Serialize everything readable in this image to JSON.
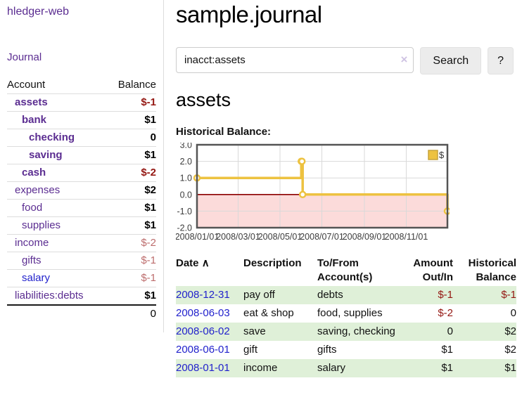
{
  "sidebar": {
    "app_title": "hledger-web",
    "journal_link": "Journal",
    "accounts_table": {
      "headers": {
        "account": "Account",
        "balance": "Balance"
      },
      "rows": [
        {
          "name": "assets",
          "balance": "$-1"
        },
        {
          "name": "bank",
          "balance": "$1"
        },
        {
          "name": "checking",
          "balance": "0"
        },
        {
          "name": "saving",
          "balance": "$1"
        },
        {
          "name": "cash",
          "balance": "$-2"
        },
        {
          "name": "expenses",
          "balance": "$2"
        },
        {
          "name": "food",
          "balance": "$1"
        },
        {
          "name": "supplies",
          "balance": "$1"
        },
        {
          "name": "income",
          "balance": "$-2"
        },
        {
          "name": "gifts",
          "balance": "$-1"
        },
        {
          "name": "salary",
          "balance": "$-1"
        },
        {
          "name": "liabilities:debts",
          "balance": "$1"
        }
      ],
      "total": "0"
    }
  },
  "main": {
    "title": "sample.journal",
    "search": {
      "query": "inacct:assets",
      "clear_icon": "×",
      "search_label": "Search",
      "help_label": "?"
    },
    "account_heading": "assets",
    "chart_label": "Historical Balance:",
    "transactions": {
      "headers": {
        "date": "Date",
        "sort_arrow": "∧",
        "description": "Description",
        "tofrom": "To/From Account(s)",
        "amount": "Amount Out/In",
        "balance": "Historical Balance"
      },
      "rows": [
        {
          "date": "2008-12-31",
          "description": "pay off",
          "accounts": "debts",
          "amount": "$-1",
          "balance": "$-1"
        },
        {
          "date": "2008-06-03",
          "description": "eat & shop",
          "accounts": "food, supplies",
          "amount": "$-2",
          "balance": "0"
        },
        {
          "date": "2008-06-02",
          "description": "save",
          "accounts": "saving, checking",
          "amount": "0",
          "balance": "$2"
        },
        {
          "date": "2008-06-01",
          "description": "gift",
          "accounts": "gifts",
          "amount": "$1",
          "balance": "$2"
        },
        {
          "date": "2008-01-01",
          "description": "income",
          "accounts": "salary",
          "amount": "$1",
          "balance": "$1"
        }
      ]
    }
  },
  "chart_data": {
    "type": "line",
    "title": "Historical Balance",
    "series": [
      {
        "name": "$",
        "step": true,
        "points": [
          [
            "2008-01-01",
            1
          ],
          [
            "2008-06-01",
            2
          ],
          [
            "2008-06-02",
            2
          ],
          [
            "2008-06-03",
            0
          ],
          [
            "2008-12-31",
            -1
          ]
        ]
      }
    ],
    "xrange": [
      "2008-01-01",
      "2008-12-31"
    ],
    "ylim": [
      -2,
      3
    ],
    "yticks": [
      3,
      2,
      1,
      0,
      -1,
      -2
    ],
    "ytick_labels": [
      "3.0",
      "2.0",
      "1.0",
      "0.0",
      "-1.0",
      "-2.0"
    ],
    "xticks": [
      "2008-01-01",
      "2008-03-01",
      "2008-05-01",
      "2008-07-01",
      "2008-09-01",
      "2008-11-01"
    ],
    "xtick_labels": [
      "2008/01/01",
      "2008/03/01",
      "2008/05/01",
      "2008/07/01",
      "2008/09/01",
      "2008/11/01"
    ],
    "legend": {
      "label": "$",
      "position": "top-right"
    },
    "grid": true,
    "colors": {
      "line": "#EDC240",
      "legend_border": "#c7a33b",
      "negative_region": "#fcdbda",
      "zero_line": "#8b0000",
      "grid": "#d9d9d9",
      "border": "#545454",
      "tick_text": "#3c3c3c"
    }
  }
}
